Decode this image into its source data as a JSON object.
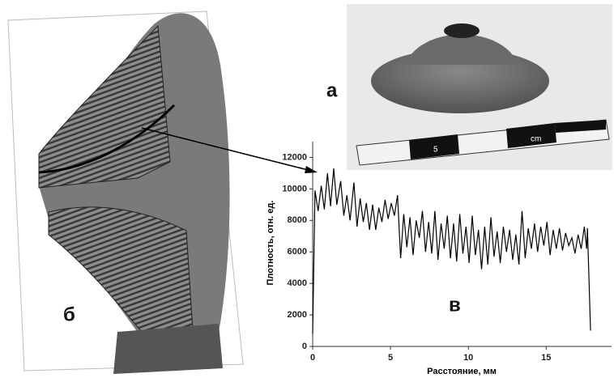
{
  "chart_data": {
    "type": "line",
    "x_label": "Расстояние, мм",
    "y_label": "Плотность, отн. ед.",
    "x": [
      0,
      0.15,
      0.35,
      0.55,
      0.75,
      0.95,
      1.15,
      1.35,
      1.55,
      1.8,
      2.0,
      2.2,
      2.4,
      2.65,
      2.85,
      3.05,
      3.25,
      3.45,
      3.65,
      3.85,
      4.05,
      4.25,
      4.45,
      4.65,
      4.85,
      5.05,
      5.25,
      5.45,
      5.65,
      5.85,
      6.05,
      6.25,
      6.45,
      6.65,
      6.85,
      7.05,
      7.25,
      7.45,
      7.65,
      7.85,
      8.05,
      8.25,
      8.45,
      8.65,
      8.85,
      9.05,
      9.25,
      9.45,
      9.65,
      9.85,
      10.05,
      10.25,
      10.45,
      10.65,
      10.85,
      11.05,
      11.25,
      11.45,
      11.65,
      11.85,
      12.05,
      12.25,
      12.45,
      12.65,
      12.85,
      13.05,
      13.25,
      13.45,
      13.65,
      13.85,
      14.05,
      14.25,
      14.45,
      14.65,
      14.85,
      15.05,
      15.25,
      15.45,
      15.65,
      15.85,
      16.05,
      16.25,
      16.45,
      16.65,
      16.85,
      17.05,
      17.25,
      17.45,
      17.6,
      17.65,
      17.85
    ],
    "values": [
      800,
      9900,
      8600,
      10200,
      8700,
      11000,
      8900,
      11300,
      9000,
      10500,
      8300,
      9600,
      8000,
      10400,
      7600,
      9400,
      7900,
      9100,
      7400,
      9000,
      7400,
      8800,
      7900,
      9300,
      8100,
      9100,
      8300,
      9600,
      5600,
      8400,
      6300,
      8200,
      5800,
      8000,
      6900,
      8600,
      6000,
      7900,
      5900,
      8600,
      5500,
      7800,
      6200,
      8300,
      5600,
      7800,
      5400,
      8400,
      5900,
      7600,
      5300,
      8300,
      5800,
      7400,
      4900,
      7600,
      5200,
      8200,
      5700,
      7300,
      5300,
      7600,
      6000,
      7400,
      5500,
      7100,
      5200,
      8600,
      5600,
      7500,
      6200,
      7800,
      6000,
      7600,
      6400,
      7900,
      5800,
      7400,
      6200,
      7500,
      6100,
      7200,
      6400,
      6900,
      5900,
      7100,
      6200,
      7600,
      6200,
      7500,
      1000
    ],
    "color": "#000000",
    "xlim": [
      0,
      19.2
    ],
    "xticks": [
      0,
      5,
      10,
      15
    ],
    "ylim": [
      0,
      13000
    ],
    "yticks": [
      0,
      2000,
      4000,
      6000,
      8000,
      10000,
      12000
    ]
  },
  "panel_labels": [
    "а",
    "б",
    "в"
  ],
  "scale_labels": [
    "5",
    "cm"
  ]
}
